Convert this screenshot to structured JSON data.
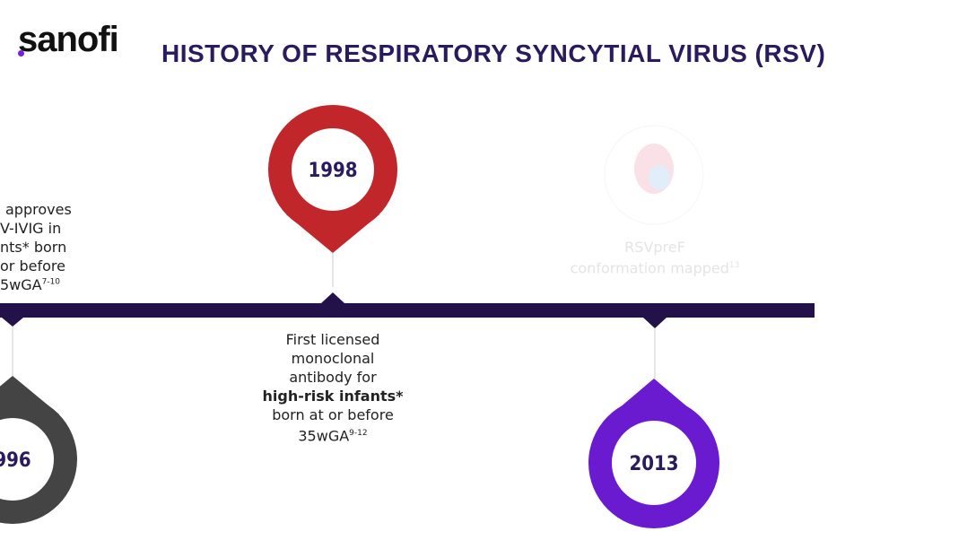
{
  "logo": "sanofi",
  "title": "HISTORY OF RESPIRATORY SYNCYTIAL VIRUS (RSV)",
  "colors": {
    "title": "#2a1a5e",
    "timeline": "#23124a",
    "pin_1996": "#444444",
    "pin_1998": "#c0262a",
    "pin_2013": "#6a1bd0"
  },
  "events": [
    {
      "year": "996",
      "lines": [
        "approves",
        "V-IVIG in",
        "nts* born",
        "or before",
        "5wGA"
      ],
      "ref": "7-10"
    },
    {
      "year": "1998",
      "line1": "First licensed",
      "line2": "monoclonal",
      "line3": "antibody for",
      "bold": "high-risk infants*",
      "line5": "born at or before",
      "line6": "35wGA",
      "ref": "9-12"
    },
    {
      "year": "2013",
      "line1": "RSVpreF",
      "line2": "conformation mapped",
      "ref": "13"
    }
  ]
}
